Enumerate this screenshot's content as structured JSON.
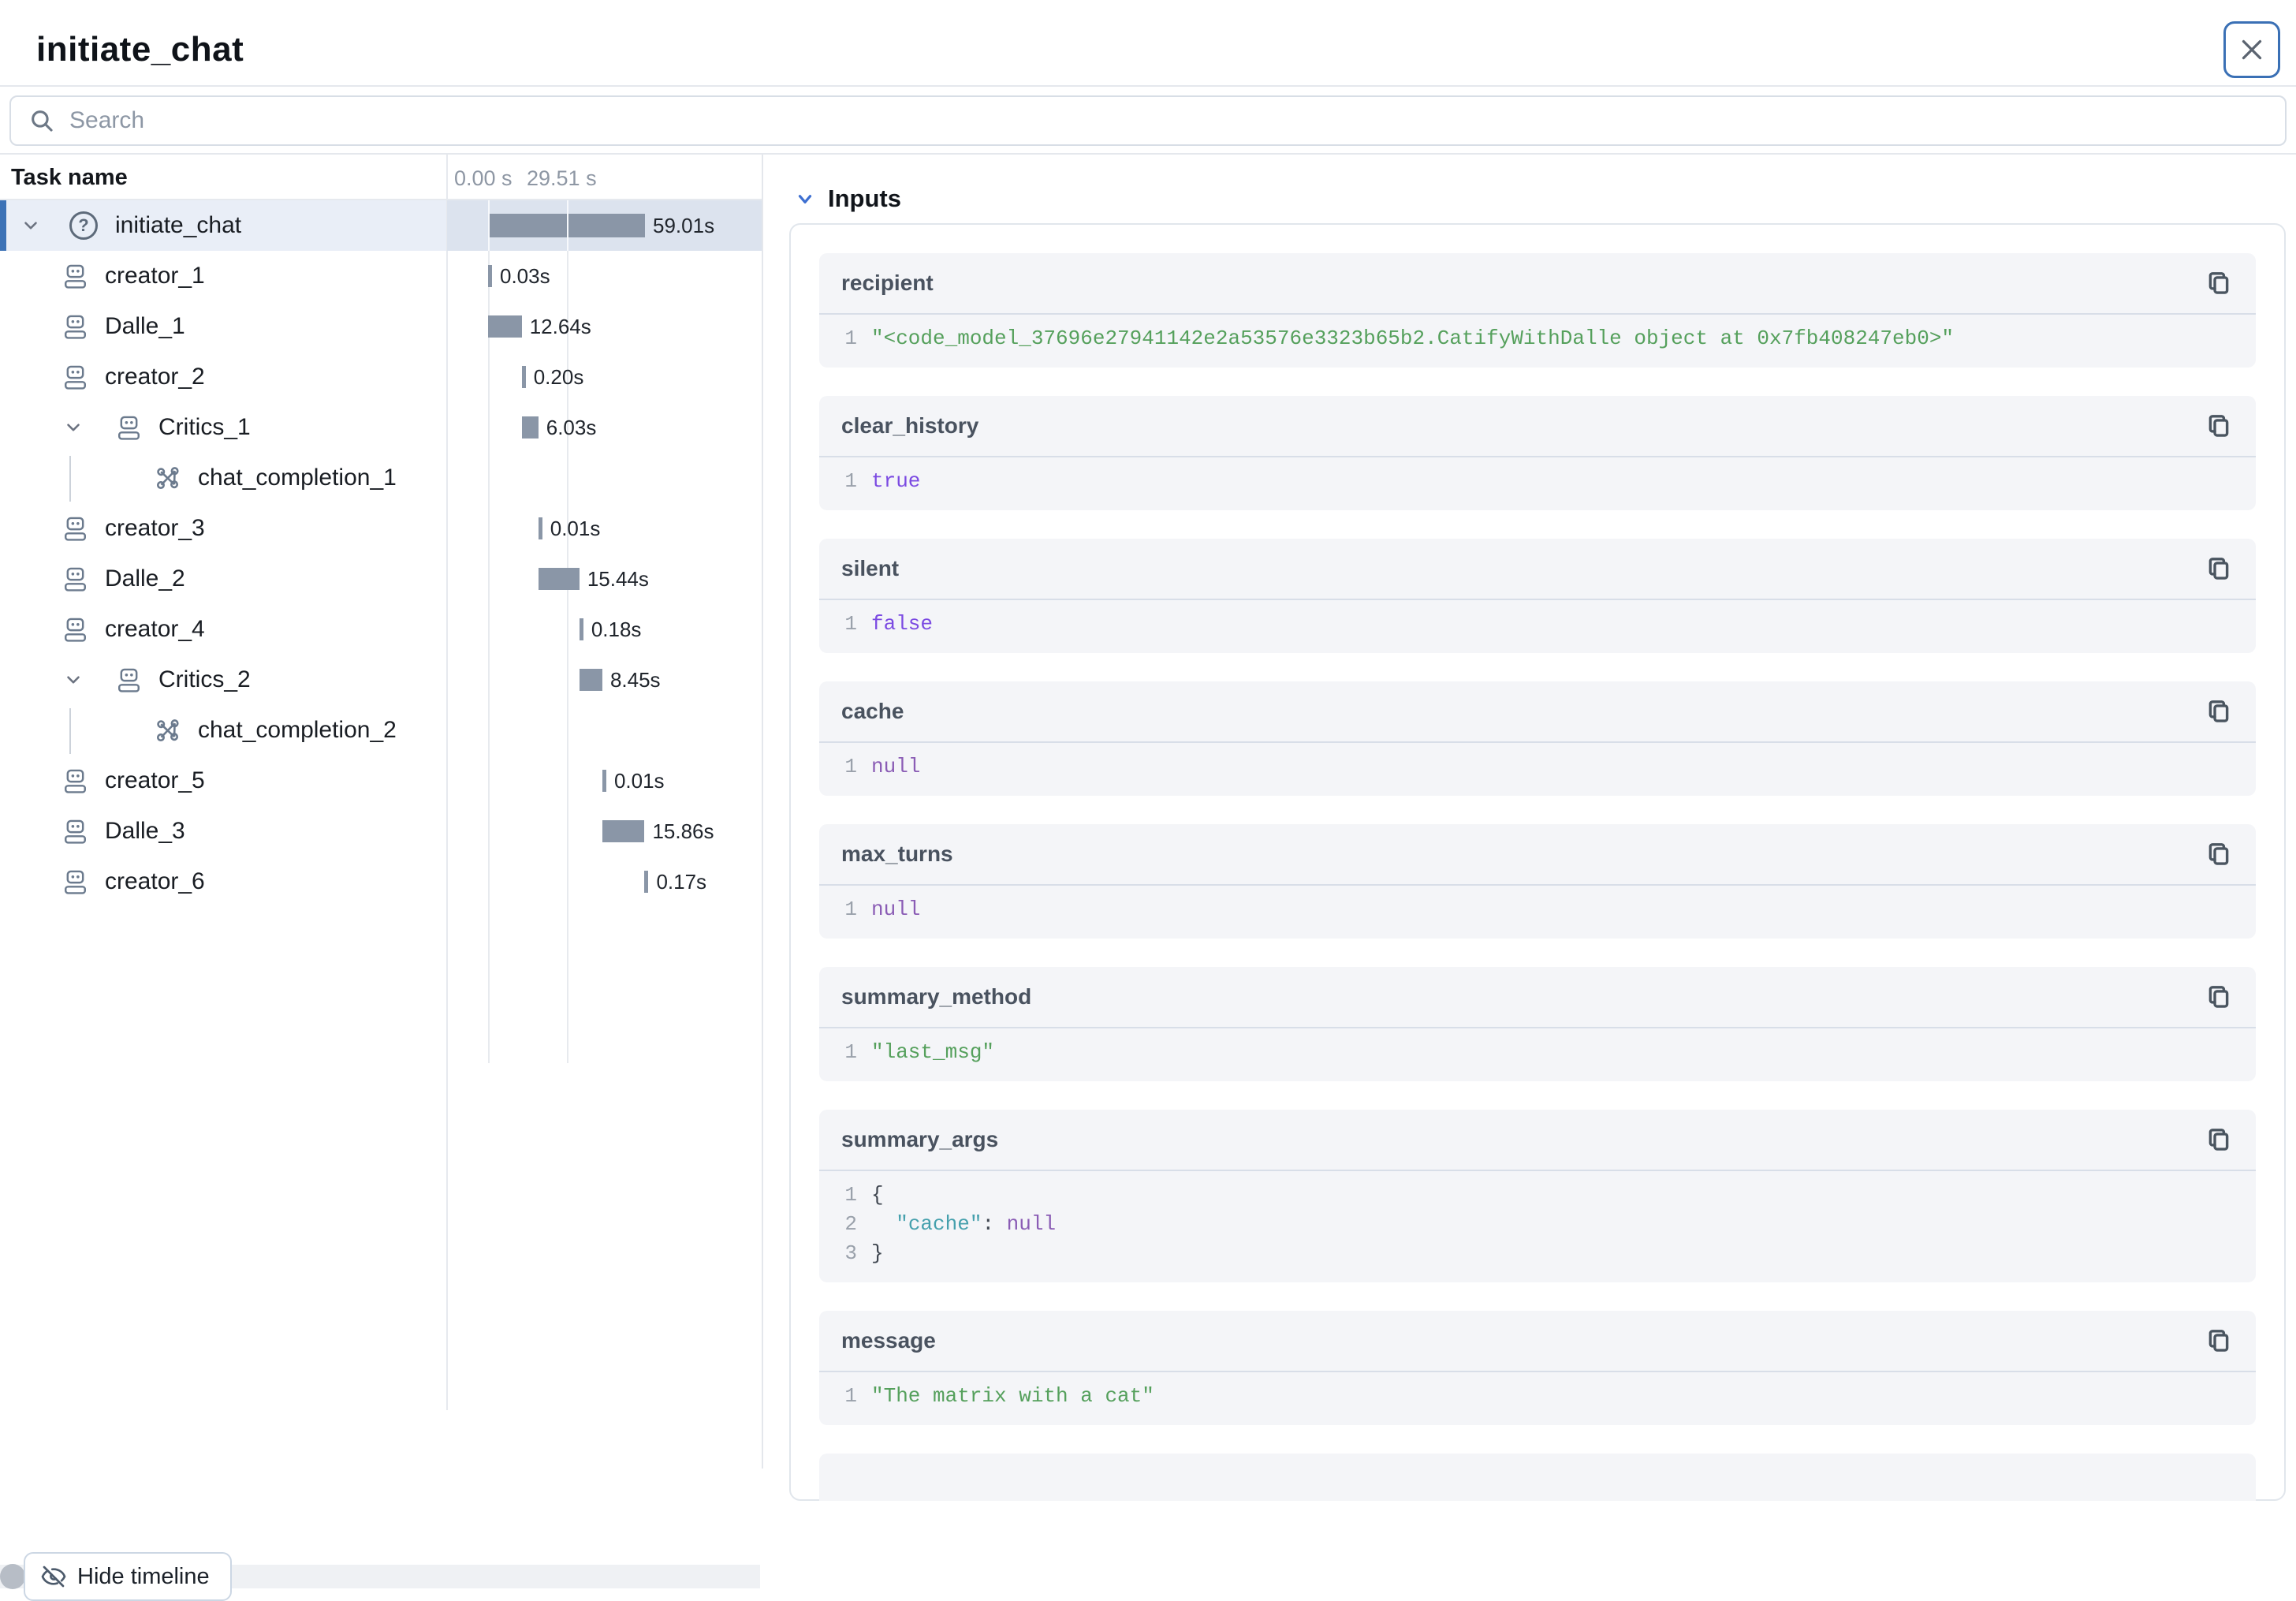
{
  "window": {
    "title": "initiate_chat"
  },
  "search": {
    "placeholder": "Search"
  },
  "timeline": {
    "task_name_header": "Task name",
    "axis_ticks": [
      "0.00 s",
      "29.51 s"
    ],
    "axis_tick_times": [
      0,
      29.51
    ],
    "hide_button_label": "Hide timeline",
    "rows": [
      {
        "name": "initiate_chat",
        "icon": "question",
        "level": 0,
        "chevron": true,
        "selected": true,
        "bar": {
          "start": 0,
          "dur": 59.01,
          "label": "59.01s"
        }
      },
      {
        "name": "creator_1",
        "icon": "robot",
        "level": 1,
        "chevron": false,
        "selected": false,
        "bar": {
          "start": 0,
          "dur": 0.03,
          "label": "0.03s"
        }
      },
      {
        "name": "Dalle_1",
        "icon": "robot",
        "level": 1,
        "chevron": false,
        "selected": false,
        "bar": {
          "start": 0.03,
          "dur": 12.64,
          "label": "12.64s"
        }
      },
      {
        "name": "creator_2",
        "icon": "robot",
        "level": 1,
        "chevron": false,
        "selected": false,
        "bar": {
          "start": 12.67,
          "dur": 0.2,
          "label": "0.20s"
        }
      },
      {
        "name": "Critics_1",
        "icon": "robot",
        "level": 1,
        "chevron": true,
        "selected": false,
        "connector": true,
        "bar": {
          "start": 12.87,
          "dur": 6.03,
          "label": "6.03s"
        }
      },
      {
        "name": "chat_completion_1",
        "icon": "network",
        "level": 2,
        "chevron": false,
        "selected": false,
        "bar": null
      },
      {
        "name": "creator_3",
        "icon": "robot",
        "level": 1,
        "chevron": false,
        "selected": false,
        "bar": {
          "start": 18.9,
          "dur": 0.01,
          "label": "0.01s"
        }
      },
      {
        "name": "Dalle_2",
        "icon": "robot",
        "level": 1,
        "chevron": false,
        "selected": false,
        "bar": {
          "start": 18.91,
          "dur": 15.44,
          "label": "15.44s"
        }
      },
      {
        "name": "creator_4",
        "icon": "robot",
        "level": 1,
        "chevron": false,
        "selected": false,
        "bar": {
          "start": 34.35,
          "dur": 0.18,
          "label": "0.18s"
        }
      },
      {
        "name": "Critics_2",
        "icon": "robot",
        "level": 1,
        "chevron": true,
        "selected": false,
        "connector": true,
        "bar": {
          "start": 34.53,
          "dur": 8.45,
          "label": "8.45s"
        }
      },
      {
        "name": "chat_completion_2",
        "icon": "network",
        "level": 2,
        "chevron": false,
        "selected": false,
        "bar": null
      },
      {
        "name": "creator_5",
        "icon": "robot",
        "level": 1,
        "chevron": false,
        "selected": false,
        "bar": {
          "start": 42.98,
          "dur": 0.01,
          "label": "0.01s"
        }
      },
      {
        "name": "Dalle_3",
        "icon": "robot",
        "level": 1,
        "chevron": false,
        "selected": false,
        "bar": {
          "start": 42.99,
          "dur": 15.86,
          "label": "15.86s"
        }
      },
      {
        "name": "creator_6",
        "icon": "robot",
        "level": 1,
        "chevron": false,
        "selected": false,
        "bar": {
          "start": 58.85,
          "dur": 0.17,
          "label": "0.17s"
        }
      }
    ]
  },
  "inputs": {
    "section_label": "Inputs",
    "fields": [
      {
        "name": "recipient",
        "lines": [
          [
            {
              "t": "\"<code_model_37696e27941142e2a53576e3323b65b2.CatifyWithDalle object at 0x7fb408247eb0>\"",
              "c": "string"
            }
          ]
        ]
      },
      {
        "name": "clear_history",
        "lines": [
          [
            {
              "t": "true",
              "c": "bool"
            }
          ]
        ]
      },
      {
        "name": "silent",
        "lines": [
          [
            {
              "t": "false",
              "c": "bool"
            }
          ]
        ]
      },
      {
        "name": "cache",
        "lines": [
          [
            {
              "t": "null",
              "c": "null"
            }
          ]
        ]
      },
      {
        "name": "max_turns",
        "lines": [
          [
            {
              "t": "null",
              "c": "null"
            }
          ]
        ]
      },
      {
        "name": "summary_method",
        "lines": [
          [
            {
              "t": "\"last_msg\"",
              "c": "string"
            }
          ]
        ]
      },
      {
        "name": "summary_args",
        "lines": [
          [
            {
              "t": "{",
              "c": "punc"
            }
          ],
          [
            {
              "t": "  ",
              "c": "plain"
            },
            {
              "t": "\"cache\"",
              "c": "key"
            },
            {
              "t": ":",
              "c": "punc"
            },
            {
              "t": " ",
              "c": "plain"
            },
            {
              "t": "null",
              "c": "null"
            }
          ],
          [
            {
              "t": "}",
              "c": "punc"
            }
          ]
        ]
      },
      {
        "name": "message",
        "lines": [
          [
            {
              "t": "\"The matrix with a cat\"",
              "c": "string"
            }
          ]
        ]
      }
    ]
  },
  "colors": {
    "accent_blue": "#3c72b6",
    "bar": "#8a96a7",
    "string": "#55a05c",
    "bool": "#7b4ae2",
    "null": "#8a5cb5",
    "key": "#45a0ad"
  }
}
